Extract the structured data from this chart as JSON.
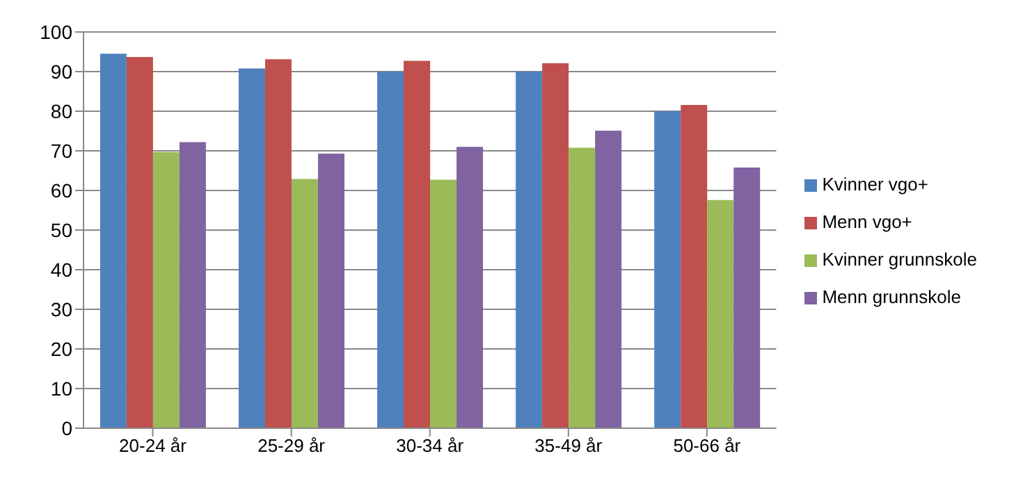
{
  "chart_data": {
    "type": "bar",
    "categories": [
      "20-24 år",
      "25-29 år",
      "30-34 år",
      "35-49 år",
      "50-66 år"
    ],
    "series": [
      {
        "name": "Kvinner vgo+",
        "color": "#4f81bd",
        "values": [
          94.5,
          90.8,
          90,
          90,
          80
        ]
      },
      {
        "name": "Menn vgo+",
        "color": "#c0504d",
        "values": [
          93.7,
          93.1,
          92.7,
          92.1,
          81.6
        ]
      },
      {
        "name": "Kvinner grunnskole",
        "color": "#9bbb59",
        "values": [
          69.7,
          62.9,
          62.7,
          70.8,
          57.6
        ]
      },
      {
        "name": "Menn grunnskole",
        "color": "#8064a2",
        "values": [
          72.2,
          69.3,
          71,
          75.1,
          65.8
        ]
      }
    ],
    "ylim": [
      0,
      100
    ],
    "yticks": [
      0,
      10,
      20,
      30,
      40,
      50,
      60,
      70,
      80,
      90,
      100
    ],
    "grid": "y",
    "legend": "right"
  }
}
